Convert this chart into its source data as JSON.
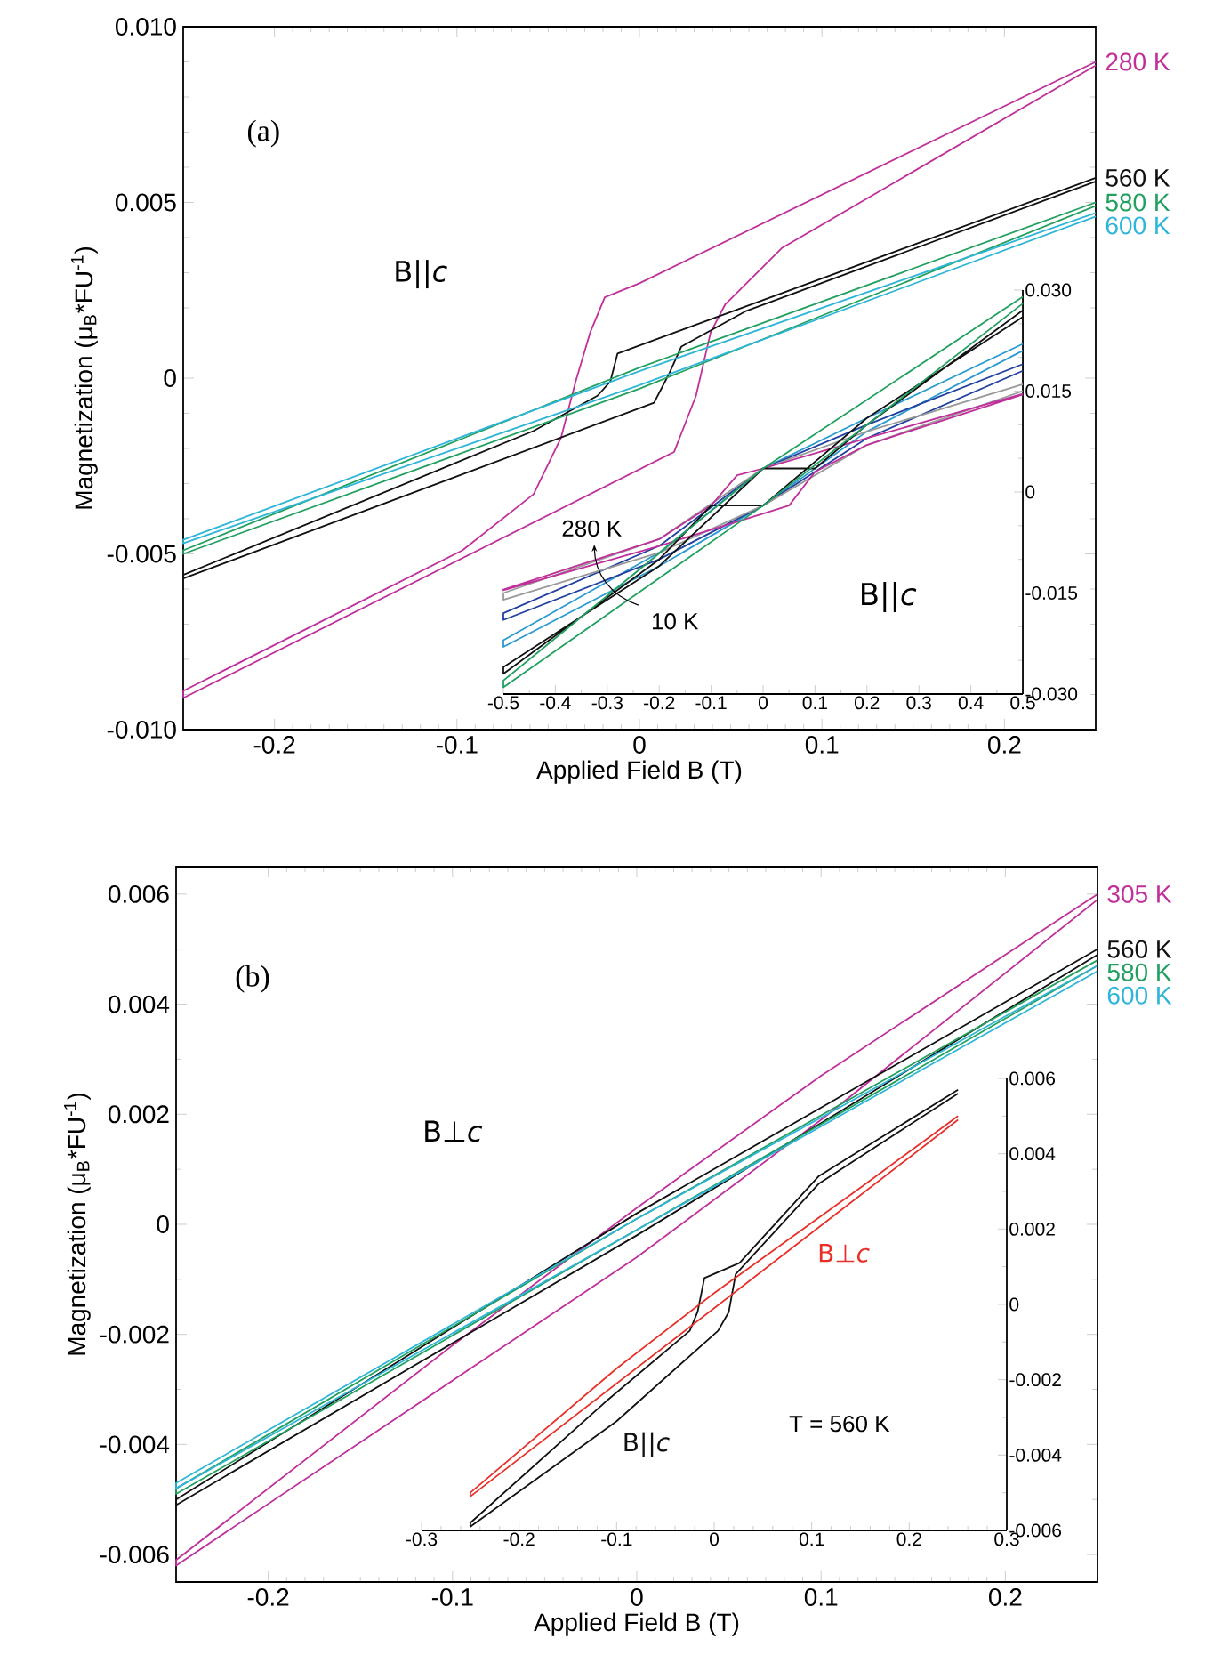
{
  "chart_data": [
    {
      "type": "line",
      "xlabel": "Applied Field B (T)",
      "ylabel": "Magnetization (μ$_{B}$*FU$^{-1}$)",
      "xlim": [
        -0.25,
        0.25
      ],
      "ylim": [
        -0.01,
        0.01
      ],
      "xticks": [
        -0.2,
        -0.1,
        0,
        0.1,
        0.2
      ],
      "yticks": [
        {
          "value": -0.01,
          "label": "-0.010"
        },
        {
          "value": -0.005,
          "label": "-0.005"
        },
        0,
        {
          "value": 0.005,
          "label": "0.005"
        },
        {
          "value": 0.01,
          "label": "0.010"
        }
      ],
      "series": [
        {
          "name": "280 K",
          "color": "#c0309a",
          "x": [
            0.25,
            0.0,
            -0.019,
            -0.027,
            -0.035,
            -0.043,
            -0.058,
            -0.097,
            -0.25,
            -0.25,
            0.019,
            0.031,
            0.039,
            0.047,
            0.078,
            0.25
          ],
          "values": [
            0.009,
            0.0027,
            0.0023,
            0.0013,
            -0.0001,
            -0.0017,
            -0.0033,
            -0.0049,
            -0.0089,
            -0.0091,
            -0.0021,
            -0.0005,
            0.0013,
            0.0021,
            0.0037,
            0.0089
          ]
        },
        {
          "name": "560 K",
          "color": "#111111",
          "x": [
            0.25,
            -0.012,
            -0.016,
            -0.023,
            -0.058,
            -0.25,
            -0.25,
            0.008,
            0.016,
            0.023,
            0.058,
            0.25
          ],
          "values": [
            0.0057,
            0.0007,
            -0.0001,
            -0.0005,
            -0.0015,
            -0.0056,
            -0.0057,
            -0.0007,
            0.0001,
            0.0009,
            0.0019,
            0.0056
          ]
        },
        {
          "name": "580 K",
          "color": "#22a060",
          "x": [
            0.25,
            0,
            -0.25,
            -0.25,
            0,
            0.25
          ],
          "values": [
            0.005,
            0.0003,
            -0.0049,
            -0.005,
            -0.0003,
            0.0049
          ]
        },
        {
          "name": "600 K",
          "color": "#2fb5d8",
          "x": [
            0.25,
            0,
            -0.25,
            -0.25,
            0,
            0.25
          ],
          "values": [
            0.0047,
            0.0002,
            -0.0046,
            -0.0047,
            -0.0002,
            0.0046
          ]
        }
      ],
      "annotations": [
        "(a)",
        "B||*c*"
      ]
    },
    {
      "type": "line",
      "xlim": [
        -0.5,
        0.5
      ],
      "ylim": [
        -0.03,
        0.03
      ],
      "xticks": [
        -0.5,
        -0.4,
        -0.3,
        -0.2,
        -0.1,
        0,
        0.1,
        0.2,
        0.3,
        0.4,
        0.5
      ],
      "yticks": [
        {
          "value": -0.03,
          "label": "-0.030"
        },
        -0.015,
        0,
        0.015,
        {
          "value": 0.03,
          "label": "0.030"
        }
      ],
      "series": [
        {
          "color": "#2a9ad0",
          "x": [
            0.5,
            0.2,
            0,
            -0.2,
            -0.5,
            -0.5,
            -0.2,
            0,
            0.2,
            0.5
          ],
          "values": [
            0.022,
            0.011,
            0.0035,
            -0.009,
            -0.022,
            -0.023,
            -0.011,
            -0.002,
            0.009,
            0.021
          ]
        },
        {
          "color": "#2040a0",
          "x": [
            0.5,
            0.2,
            0,
            -0.2,
            -0.5,
            -0.5,
            -0.2,
            0,
            0.2,
            0.5
          ],
          "values": [
            0.019,
            0.01,
            0.0035,
            -0.008,
            -0.018,
            -0.019,
            -0.01,
            -0.002,
            0.008,
            0.018
          ]
        },
        {
          "color": "#999999",
          "x": [
            0.5,
            0.2,
            0,
            -0.2,
            -0.5,
            -0.5,
            -0.2,
            0,
            0.2,
            0.5
          ],
          "values": [
            0.016,
            0.009,
            0.0035,
            -0.007,
            -0.015,
            -0.016,
            -0.009,
            -0.002,
            0.007,
            0.015
          ]
        },
        {
          "color": "#c0309a",
          "x": [
            0.5,
            0.2,
            0.0,
            -0.05,
            -0.1,
            -0.2,
            -0.5,
            -0.5,
            -0.2,
            0.05,
            0.1,
            0.2,
            0.5
          ],
          "values": [
            0.0146,
            0.008,
            0.0035,
            0.0025,
            -0.002,
            -0.007,
            -0.0145,
            -0.0146,
            -0.008,
            -0.002,
            0.003,
            0.007,
            0.0145
          ]
        },
        {
          "color": "#111111",
          "x": [
            0.5,
            0.2,
            0.1,
            0,
            -0.2,
            -0.5,
            -0.5,
            -0.2,
            -0.1,
            0,
            0.2,
            0.5
          ],
          "values": [
            0.027,
            0.01,
            0.0035,
            0.0035,
            -0.011,
            -0.026,
            -0.027,
            -0.01,
            -0.002,
            -0.002,
            0.011,
            0.026
          ]
        },
        {
          "color": "#22a060",
          "x": [
            0.5,
            0,
            -0.5,
            -0.5,
            0,
            0.5
          ],
          "values": [
            0.029,
            0.0035,
            -0.028,
            -0.029,
            -0.002,
            0.028
          ]
        }
      ],
      "annotations": [
        "280 K",
        "10 K",
        "B||*c*"
      ]
    },
    {
      "type": "line",
      "xlabel": "Applied Field B (T)",
      "ylabel": "Magnetization (μ$_{B}$*FU$^{-1}$)",
      "xlim": [
        -0.25,
        0.25
      ],
      "ylim": [
        -0.0065,
        0.0065
      ],
      "xticks": [
        -0.2,
        -0.1,
        0,
        0.1,
        0.2
      ],
      "yticks": [
        -0.006,
        -0.004,
        -0.002,
        0,
        0.002,
        0.004,
        0.006
      ],
      "series": [
        {
          "name": "305 K",
          "color": "#c0309a",
          "x": [
            0.25,
            0.1,
            0,
            -0.1,
            -0.25,
            -0.25,
            0,
            0.1,
            0.25
          ],
          "values": [
            0.006,
            0.0027,
            0.0003,
            -0.0022,
            -0.0061,
            -0.0062,
            -0.0006,
            0.0019,
            0.0059
          ]
        },
        {
          "name": "560 K",
          "color": "#111111",
          "x": [
            0.25,
            0,
            -0.25,
            -0.25,
            0,
            0.25
          ],
          "values": [
            0.005,
            0.0002,
            -0.005,
            -0.0051,
            -0.0002,
            0.0049
          ]
        },
        {
          "name": "580 K",
          "color": "#22a060",
          "x": [
            0.25,
            0,
            -0.25,
            -0.25,
            0,
            0.25
          ],
          "values": [
            0.0048,
            0.0001,
            -0.0048,
            -0.0049,
            -0.0001,
            0.0047
          ]
        },
        {
          "name": "600 K",
          "color": "#2fb5d8",
          "x": [
            0.25,
            0,
            -0.25,
            -0.25,
            0,
            0.25
          ],
          "values": [
            0.0047,
            0.0001,
            -0.0047,
            -0.0048,
            -0.0001,
            0.0046
          ]
        }
      ],
      "annotations": [
        "(b)",
        "B⊥*c*"
      ]
    },
    {
      "type": "line",
      "xlim": [
        -0.3,
        0.3
      ],
      "ylim": [
        -0.006,
        0.006
      ],
      "xticks": [
        -0.3,
        -0.2,
        -0.1,
        0,
        0.1,
        0.2,
        0.3
      ],
      "yticks": [
        -0.006,
        -0.004,
        -0.002,
        0,
        0.002,
        0.004,
        0.006
      ],
      "series": [
        {
          "name": "B||*c*",
          "color": "#111111",
          "x": [
            0.25,
            0.107,
            0.026,
            -0.01,
            -0.017,
            -0.025,
            -0.112,
            -0.25,
            -0.25,
            -0.1,
            0.004,
            0.015,
            0.022,
            0.107,
            0.25
          ],
          "values": [
            0.0057,
            0.0034,
            0.0011,
            0.0007,
            -0.0002,
            -0.0007,
            -0.0026,
            -0.0058,
            -0.0059,
            -0.0031,
            -0.0007,
            -0.0002,
            0.0008,
            0.0032,
            0.0056
          ]
        },
        {
          "name": "B⊥*c*",
          "color": "#e8302a",
          "x": [
            0.25,
            0.15,
            0,
            -0.1,
            -0.25,
            -0.25,
            0.1,
            0.25
          ],
          "values": [
            0.005,
            0.0031,
            0.0003,
            -0.0017,
            -0.005,
            -0.0051,
            0.0019,
            0.0049
          ]
        }
      ],
      "annotations": [
        "T = 560 K"
      ]
    }
  ]
}
